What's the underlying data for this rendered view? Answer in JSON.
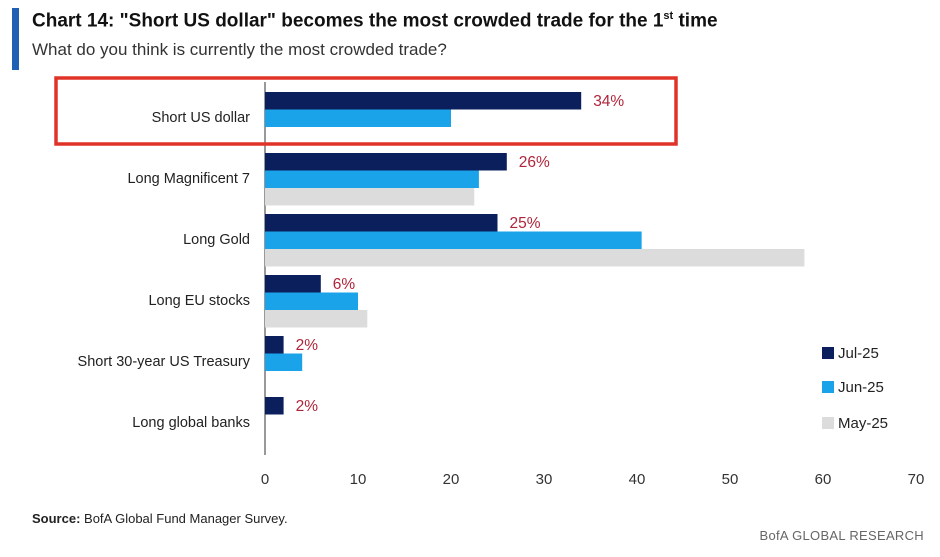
{
  "header": {
    "title_main": "Chart 14: \"Short US dollar\" becomes the most crowded trade for the 1",
    "title_sup": "st",
    "title_end": " time",
    "subtitle": "What do you think is currently the most crowded trade?"
  },
  "footer": {
    "source_label": "Source:",
    "source_text": " BofA Global Fund Manager Survey.",
    "brand": "BofA GLOBAL RESEARCH"
  },
  "colors": {
    "jul": "#0b1f5c",
    "jun": "#1aa3e8",
    "may": "#dcdcdc",
    "label": "#b0243a",
    "highlight": "#e03328"
  },
  "chart_data": {
    "type": "bar",
    "orientation": "horizontal",
    "categories": [
      "Short US dollar",
      "Long Magnificent 7",
      "Long Gold",
      "Long EU stocks",
      "Short 30-year US Treasury",
      "Long global banks"
    ],
    "series": [
      {
        "name": "Jul-25",
        "values": [
          34,
          26,
          25,
          6,
          2,
          2
        ]
      },
      {
        "name": "Jun-25",
        "values": [
          20,
          23,
          40.5,
          10,
          4,
          0
        ]
      },
      {
        "name": "May-25",
        "values": [
          0,
          22.5,
          58,
          11,
          0,
          0
        ]
      }
    ],
    "data_labels": [
      "34%",
      "26%",
      "25%",
      "6%",
      "2%",
      "2%"
    ],
    "xticks": [
      0,
      10,
      20,
      30,
      40,
      50,
      60,
      70
    ],
    "xlim": [
      0,
      70
    ],
    "legend_position": "bottom-right",
    "highlighted_category": "Short US dollar"
  }
}
